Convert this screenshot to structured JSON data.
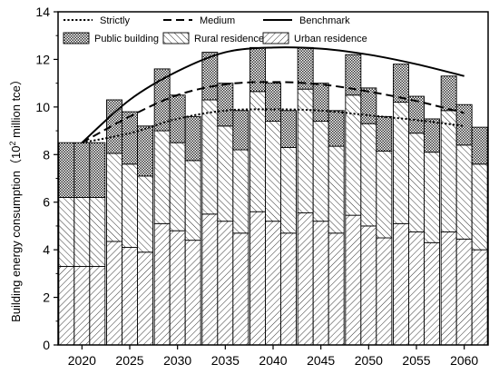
{
  "chart_data": {
    "type": "bar",
    "ylabel_main": "Building energy consumption（10",
    "ylabel_sup": "2",
    "ylabel_tail": " million tce）",
    "ylim": [
      0,
      14
    ],
    "yticks": [
      0,
      2,
      4,
      6,
      8,
      10,
      12,
      14
    ],
    "categories": [
      "2020",
      "2025",
      "2030",
      "2035",
      "2040",
      "2045",
      "2050",
      "2055",
      "2060"
    ],
    "scenarios": [
      "Benchmark",
      "Medium",
      "Strictly"
    ],
    "stack_series": [
      {
        "name": "Urban residence",
        "pattern": "hatch-urban"
      },
      {
        "name": "Rural residence",
        "pattern": "hatch-rural"
      },
      {
        "name": "Public building",
        "pattern": "crosshatch"
      }
    ],
    "stacks": [
      {
        "year": "2020",
        "bars": [
          [
            3.3,
            2.9,
            2.3
          ],
          [
            3.3,
            2.9,
            2.3
          ],
          [
            3.3,
            2.9,
            2.3
          ]
        ]
      },
      {
        "year": "2025",
        "bars": [
          [
            4.35,
            3.7,
            2.25
          ],
          [
            4.1,
            3.5,
            2.2
          ],
          [
            3.9,
            3.2,
            2.1
          ]
        ]
      },
      {
        "year": "2030",
        "bars": [
          [
            5.1,
            3.9,
            2.6
          ],
          [
            4.8,
            3.7,
            2.0
          ],
          [
            4.4,
            3.35,
            1.85
          ]
        ]
      },
      {
        "year": "2035",
        "bars": [
          [
            5.5,
            4.8,
            2.0
          ],
          [
            5.2,
            4.0,
            1.8
          ],
          [
            4.7,
            3.5,
            1.65
          ]
        ]
      },
      {
        "year": "2040",
        "bars": [
          [
            5.6,
            5.05,
            1.85
          ],
          [
            5.2,
            4.2,
            1.6
          ],
          [
            4.7,
            3.6,
            1.55
          ]
        ]
      },
      {
        "year": "2045",
        "bars": [
          [
            5.55,
            5.2,
            1.75
          ],
          [
            5.2,
            4.2,
            1.6
          ],
          [
            4.7,
            3.65,
            1.5
          ]
        ]
      },
      {
        "year": "2050",
        "bars": [
          [
            5.45,
            5.05,
            1.7
          ],
          [
            5.0,
            4.3,
            1.5
          ],
          [
            4.5,
            3.65,
            1.45
          ]
        ]
      },
      {
        "year": "2055",
        "bars": [
          [
            5.1,
            5.1,
            1.6
          ],
          [
            4.75,
            4.15,
            1.55
          ],
          [
            4.3,
            3.8,
            1.4
          ]
        ]
      },
      {
        "year": "2060",
        "bars": [
          [
            4.75,
            5.1,
            1.45
          ],
          [
            4.45,
            3.95,
            1.7
          ],
          [
            4.0,
            3.6,
            1.55
          ]
        ]
      }
    ],
    "lines": [
      {
        "name": "Strictly",
        "style": "dotted",
        "points": [
          8.5,
          8.9,
          9.5,
          9.85,
          9.9,
          9.85,
          9.65,
          9.45,
          9.2
        ]
      },
      {
        "name": "Medium",
        "style": "dashed",
        "points": [
          8.5,
          9.6,
          10.5,
          10.95,
          11.05,
          10.95,
          10.65,
          10.25,
          9.75
        ]
      },
      {
        "name": "Benchmark",
        "style": "solid",
        "points": [
          8.5,
          10.3,
          11.5,
          12.3,
          12.5,
          12.45,
          12.2,
          11.8,
          11.3
        ]
      }
    ],
    "legend": {
      "placement": "top",
      "line_entries": [
        "Strictly",
        "Medium",
        "Benchmark"
      ],
      "fill_entries": [
        "Public building",
        "Rural residence",
        "Urban residence"
      ]
    }
  }
}
